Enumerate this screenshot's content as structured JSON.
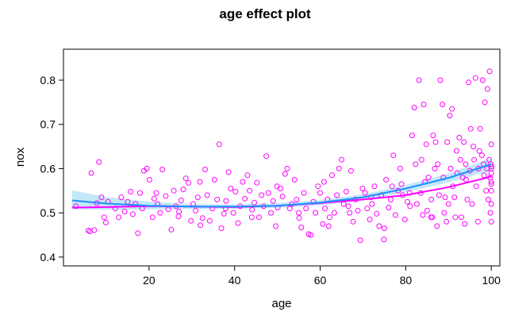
{
  "chart_data": {
    "type": "scatter",
    "title": "age effect plot",
    "xlabel": "age",
    "ylabel": "nox",
    "xlim": [
      0,
      102
    ],
    "ylim": [
      0.38,
      0.87
    ],
    "xticks": [
      20,
      40,
      60,
      80,
      100
    ],
    "yticks": [
      0.4,
      0.5,
      0.6,
      0.7,
      0.8
    ],
    "colors": {
      "points": "#ff00ff",
      "smooth": "#ff00ff",
      "fit": "#1e90ff",
      "band": "#aee0f5"
    },
    "grid": false,
    "legend": "none",
    "fit_curve": {
      "x": [
        2,
        10,
        20,
        30,
        40,
        50,
        60,
        70,
        80,
        90,
        100
      ],
      "y": [
        0.528,
        0.521,
        0.516,
        0.514,
        0.514,
        0.516,
        0.523,
        0.535,
        0.555,
        0.579,
        0.61
      ]
    },
    "fit_band": {
      "x": [
        2,
        10,
        20,
        30,
        40,
        50,
        60,
        70,
        80,
        90,
        100
      ],
      "lower": [
        0.508,
        0.507,
        0.508,
        0.509,
        0.509,
        0.511,
        0.517,
        0.528,
        0.547,
        0.569,
        0.596
      ],
      "upper": [
        0.551,
        0.536,
        0.525,
        0.52,
        0.519,
        0.522,
        0.529,
        0.542,
        0.563,
        0.589,
        0.624
      ]
    },
    "smooth_curve": {
      "x": [
        2,
        10,
        20,
        30,
        40,
        50,
        60,
        70,
        80,
        90,
        100
      ],
      "y": [
        0.512,
        0.513,
        0.515,
        0.514,
        0.513,
        0.516,
        0.522,
        0.53,
        0.54,
        0.558,
        0.582
      ]
    },
    "points": [
      [
        2.9,
        0.515
      ],
      [
        5.8,
        0.46
      ],
      [
        6.2,
        0.458
      ],
      [
        6.5,
        0.59
      ],
      [
        7.2,
        0.461
      ],
      [
        7.8,
        0.522
      ],
      [
        8.3,
        0.615
      ],
      [
        8.9,
        0.535
      ],
      [
        9.5,
        0.49
      ],
      [
        9.9,
        0.478
      ],
      [
        10.4,
        0.525
      ],
      [
        12.1,
        0.51
      ],
      [
        13.5,
        0.535
      ],
      [
        14.3,
        0.503
      ],
      [
        15.0,
        0.525
      ],
      [
        15.7,
        0.548
      ],
      [
        16.2,
        0.497
      ],
      [
        16.8,
        0.52
      ],
      [
        17.4,
        0.454
      ],
      [
        17.9,
        0.545
      ],
      [
        18.4,
        0.51
      ],
      [
        18.8,
        0.595
      ],
      [
        19.5,
        0.6
      ],
      [
        20.1,
        0.575
      ],
      [
        20.8,
        0.49
      ],
      [
        21.2,
        0.532
      ],
      [
        22.0,
        0.52
      ],
      [
        22.6,
        0.5
      ],
      [
        23.1,
        0.598
      ],
      [
        23.9,
        0.538
      ],
      [
        24.5,
        0.508
      ],
      [
        25.2,
        0.462
      ],
      [
        25.8,
        0.55
      ],
      [
        26.3,
        0.515
      ],
      [
        26.9,
        0.492
      ],
      [
        27.5,
        0.528
      ],
      [
        28.0,
        0.553
      ],
      [
        28.6,
        0.578
      ],
      [
        29.2,
        0.568
      ],
      [
        29.8,
        0.482
      ],
      [
        30.3,
        0.52
      ],
      [
        30.9,
        0.505
      ],
      [
        31.4,
        0.535
      ],
      [
        32.0,
        0.472
      ],
      [
        32.5,
        0.488
      ],
      [
        33.1,
        0.598
      ],
      [
        33.6,
        0.54
      ],
      [
        34.2,
        0.482
      ],
      [
        34.8,
        0.51
      ],
      [
        35.3,
        0.575
      ],
      [
        35.9,
        0.53
      ],
      [
        36.4,
        0.655
      ],
      [
        36.9,
        0.465
      ],
      [
        37.5,
        0.498
      ],
      [
        38.0,
        0.527
      ],
      [
        38.6,
        0.592
      ],
      [
        39.1,
        0.555
      ],
      [
        39.7,
        0.5
      ],
      [
        40.2,
        0.548
      ],
      [
        40.8,
        0.477
      ],
      [
        41.3,
        0.515
      ],
      [
        41.9,
        0.57
      ],
      [
        42.4,
        0.532
      ],
      [
        43.0,
        0.585
      ],
      [
        43.5,
        0.55
      ],
      [
        44.1,
        0.507
      ],
      [
        44.6,
        0.523
      ],
      [
        45.2,
        0.568
      ],
      [
        45.7,
        0.49
      ],
      [
        46.3,
        0.54
      ],
      [
        46.8,
        0.515
      ],
      [
        47.4,
        0.628
      ],
      [
        47.9,
        0.545
      ],
      [
        48.5,
        0.5
      ],
      [
        49.0,
        0.527
      ],
      [
        49.6,
        0.47
      ],
      [
        50.1,
        0.512
      ],
      [
        50.7,
        0.555
      ],
      [
        51.2,
        0.537
      ],
      [
        51.8,
        0.588
      ],
      [
        52.3,
        0.6
      ],
      [
        52.9,
        0.51
      ],
      [
        53.4,
        0.52
      ],
      [
        54.0,
        0.575
      ],
      [
        54.5,
        0.53
      ],
      [
        55.1,
        0.488
      ],
      [
        55.6,
        0.467
      ],
      [
        56.2,
        0.545
      ],
      [
        56.7,
        0.51
      ],
      [
        57.3,
        0.452
      ],
      [
        57.8,
        0.45
      ],
      [
        58.4,
        0.525
      ],
      [
        58.9,
        0.5
      ],
      [
        59.5,
        0.56
      ],
      [
        60.0,
        0.545
      ],
      [
        60.6,
        0.475
      ],
      [
        61.1,
        0.51
      ],
      [
        61.7,
        0.53
      ],
      [
        62.2,
        0.49
      ],
      [
        62.8,
        0.585
      ],
      [
        63.3,
        0.5
      ],
      [
        63.9,
        0.54
      ],
      [
        64.4,
        0.6
      ],
      [
        65.0,
        0.62
      ],
      [
        65.5,
        0.52
      ],
      [
        66.1,
        0.548
      ],
      [
        66.6,
        0.515
      ],
      [
        67.2,
        0.595
      ],
      [
        67.7,
        0.48
      ],
      [
        68.3,
        0.53
      ],
      [
        68.8,
        0.505
      ],
      [
        69.4,
        0.438
      ],
      [
        69.9,
        0.555
      ],
      [
        70.5,
        0.545
      ],
      [
        71.0,
        0.51
      ],
      [
        71.6,
        0.485
      ],
      [
        72.1,
        0.52
      ],
      [
        72.7,
        0.56
      ],
      [
        73.2,
        0.498
      ],
      [
        73.8,
        0.47
      ],
      [
        74.3,
        0.54
      ],
      [
        74.9,
        0.44
      ],
      [
        75.4,
        0.575
      ],
      [
        76.0,
        0.512
      ],
      [
        76.5,
        0.53
      ],
      [
        77.1,
        0.63
      ],
      [
        77.6,
        0.495
      ],
      [
        78.2,
        0.55
      ],
      [
        78.7,
        0.6
      ],
      [
        79.3,
        0.54
      ],
      [
        79.8,
        0.485
      ],
      [
        80.4,
        0.525
      ],
      [
        80.9,
        0.545
      ],
      [
        81.5,
        0.675
      ],
      [
        82.0,
        0.738
      ],
      [
        82.6,
        0.52
      ],
      [
        83.1,
        0.8
      ],
      [
        83.7,
        0.62
      ],
      [
        84.2,
        0.745
      ],
      [
        84.8,
        0.655
      ],
      [
        85.3,
        0.58
      ],
      [
        85.9,
        0.49
      ],
      [
        86.4,
        0.675
      ],
      [
        87.0,
        0.66
      ],
      [
        87.5,
        0.61
      ],
      [
        88.1,
        0.8
      ],
      [
        88.6,
        0.745
      ],
      [
        89.2,
        0.535
      ],
      [
        89.7,
        0.66
      ],
      [
        90.3,
        0.72
      ],
      [
        90.8,
        0.735
      ],
      [
        91.4,
        0.535
      ],
      [
        91.9,
        0.64
      ],
      [
        92.5,
        0.67
      ],
      [
        93.0,
        0.49
      ],
      [
        93.6,
        0.66
      ],
      [
        94.1,
        0.575
      ],
      [
        94.7,
        0.795
      ],
      [
        95.2,
        0.69
      ],
      [
        95.8,
        0.65
      ],
      [
        96.3,
        0.805
      ],
      [
        96.9,
        0.48
      ],
      [
        97.4,
        0.69
      ],
      [
        98.0,
        0.8
      ],
      [
        98.5,
        0.75
      ],
      [
        99.1,
        0.78
      ],
      [
        99.6,
        0.82
      ],
      [
        99.9,
        0.61
      ],
      [
        100.0,
        0.6
      ],
      [
        100.0,
        0.655
      ],
      [
        100.0,
        0.57
      ],
      [
        85.0,
        0.505
      ],
      [
        86.0,
        0.53
      ],
      [
        87.8,
        0.54
      ],
      [
        89.0,
        0.5
      ],
      [
        90.0,
        0.52
      ],
      [
        91.0,
        0.56
      ],
      [
        92.0,
        0.59
      ],
      [
        93.3,
        0.58
      ],
      [
        94.4,
        0.53
      ],
      [
        95.5,
        0.52
      ],
      [
        96.5,
        0.56
      ],
      [
        97.0,
        0.6
      ],
      [
        97.8,
        0.63
      ],
      [
        98.3,
        0.585
      ],
      [
        98.8,
        0.55
      ],
      [
        99.3,
        0.53
      ],
      [
        99.7,
        0.58
      ],
      [
        100.0,
        0.59
      ],
      [
        100.0,
        0.55
      ],
      [
        100.0,
        0.52
      ],
      [
        62.0,
        0.47
      ],
      [
        75.0,
        0.465
      ],
      [
        81.0,
        0.515
      ],
      [
        83.5,
        0.545
      ],
      [
        84.5,
        0.57
      ],
      [
        86.8,
        0.6
      ],
      [
        88.8,
        0.58
      ],
      [
        90.5,
        0.6
      ],
      [
        92.8,
        0.62
      ],
      [
        94.0,
        0.61
      ],
      [
        95.0,
        0.595
      ],
      [
        96.0,
        0.62
      ],
      [
        97.2,
        0.64
      ],
      [
        98.2,
        0.61
      ],
      [
        99.0,
        0.6
      ],
      [
        99.5,
        0.62
      ],
      [
        100.0,
        0.565
      ],
      [
        100.0,
        0.605
      ],
      [
        100.0,
        0.48
      ],
      [
        99.8,
        0.5
      ],
      [
        12.9,
        0.49
      ],
      [
        21.7,
        0.545
      ],
      [
        27.0,
        0.503
      ],
      [
        31.9,
        0.57
      ],
      [
        37.9,
        0.51
      ],
      [
        44.0,
        0.49
      ],
      [
        49.9,
        0.56
      ],
      [
        55.0,
        0.5
      ],
      [
        60.9,
        0.57
      ],
      [
        66.9,
        0.5
      ],
      [
        71.9,
        0.535
      ],
      [
        76.8,
        0.56
      ],
      [
        79.0,
        0.565
      ],
      [
        82.3,
        0.61
      ],
      [
        84.0,
        0.495
      ],
      [
        86.2,
        0.49
      ],
      [
        87.3,
        0.47
      ],
      [
        89.5,
        0.48
      ],
      [
        91.6,
        0.49
      ],
      [
        93.8,
        0.475
      ]
    ]
  }
}
